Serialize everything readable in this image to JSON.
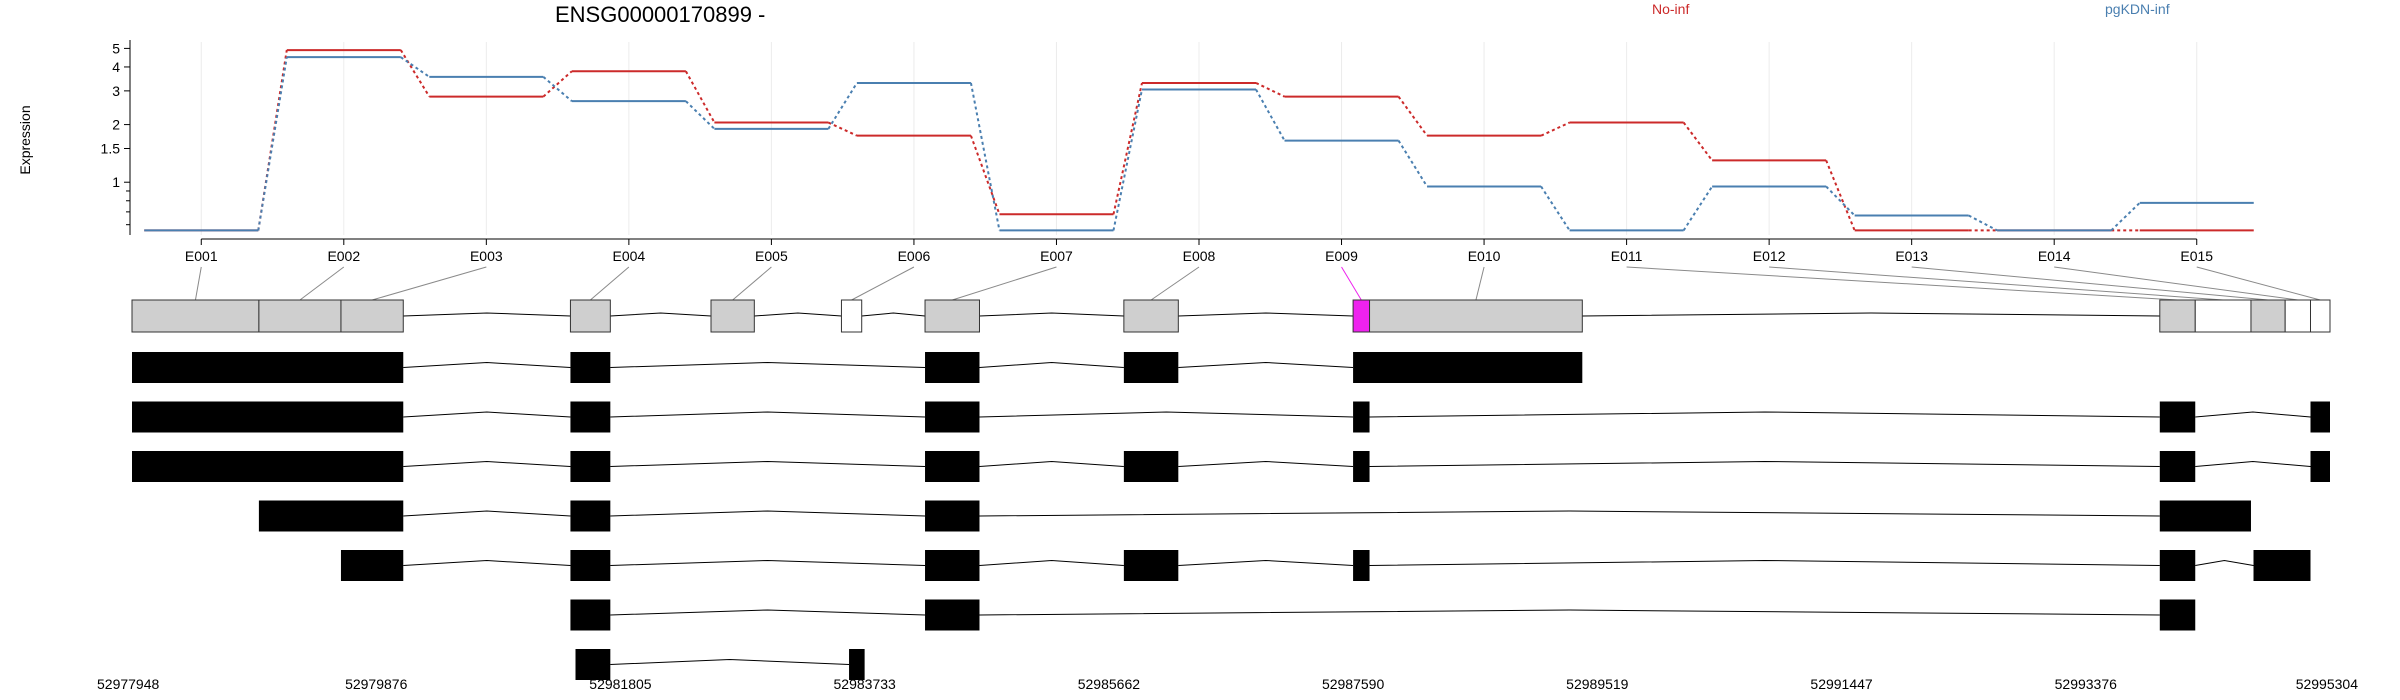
{
  "chart_data": {
    "type": "line",
    "title": "ENSG00000170899 -",
    "ylabel": "Expression",
    "xlabel": "",
    "yscale": "log",
    "ylim": [
      0.53,
      5.4
    ],
    "y_ticks": [
      1,
      1.5,
      2,
      3,
      4,
      5
    ],
    "y_tick_labels": [
      "1",
      "1.5",
      "2",
      "3",
      "4",
      "5"
    ],
    "grid": true,
    "legend_placement": "top",
    "categories": [
      "E001",
      "E002",
      "E003",
      "E004",
      "E005",
      "E006",
      "E007",
      "E008",
      "E009",
      "E010",
      "E011",
      "E012",
      "E013",
      "E014",
      "E015"
    ],
    "series": [
      {
        "name": "No-inf",
        "color": "#cc2a2a",
        "values": [
          0.56,
          4.9,
          2.8,
          3.8,
          2.05,
          1.75,
          0.68,
          3.3,
          2.8,
          1.75,
          2.05,
          1.3,
          0.56,
          0.56,
          0.56
        ]
      },
      {
        "name": "pgKDN-inf",
        "color": "#4a7fb0",
        "values": [
          0.56,
          4.5,
          3.55,
          2.65,
          1.9,
          3.3,
          0.56,
          3.05,
          1.65,
          0.95,
          0.56,
          0.95,
          0.67,
          0.56,
          0.78
        ]
      }
    ],
    "gene_model": {
      "coordinate_range": [
        52977948,
        52995304
      ],
      "coordinate_labels": [
        "52977948",
        "52979876",
        "52981805",
        "52983733",
        "52985662",
        "52987590",
        "52989519",
        "52991447",
        "52993376",
        "52995304"
      ],
      "highlighted_exon": "E009",
      "highlight_color": "#ee22ee",
      "exon_bins": [
        {
          "id": "E001",
          "start": 52977948,
          "end": 52978950
        },
        {
          "id": "E002",
          "start": 52978950,
          "end": 52979598
        },
        {
          "id": "E003",
          "start": 52979598,
          "end": 52980090
        },
        {
          "id": "E004",
          "start": 52981410,
          "end": 52981725
        },
        {
          "id": "E005",
          "start": 52982520,
          "end": 52982862
        },
        {
          "id": "E006",
          "start": 52983550,
          "end": 52983710
        },
        {
          "id": "E007",
          "start": 52984210,
          "end": 52984640
        },
        {
          "id": "E008",
          "start": 52985780,
          "end": 52986210
        },
        {
          "id": "E009",
          "start": 52987590,
          "end": 52987720
        },
        {
          "id": "E010",
          "start": 52987720,
          "end": 52989400
        },
        {
          "id": "E011",
          "start": 52993960,
          "end": 52994240
        },
        {
          "id": "E012",
          "start": 52994240,
          "end": 52994680
        },
        {
          "id": "E013",
          "start": 52994680,
          "end": 52994950
        },
        {
          "id": "E014",
          "start": 52994950,
          "end": 52995150
        },
        {
          "id": "E015",
          "start": 52995150,
          "end": 52995304
        }
      ],
      "transcripts": [
        {
          "exons": [
            [
              52977948,
              52980090
            ],
            [
              52981410,
              52981725
            ],
            [
              52984210,
              52984640
            ],
            [
              52985780,
              52986210
            ],
            [
              52987590,
              52989400
            ]
          ]
        },
        {
          "exons": [
            [
              52977948,
              52980090
            ],
            [
              52981410,
              52981725
            ],
            [
              52984210,
              52984640
            ],
            [
              52987590,
              52987720
            ],
            [
              52993960,
              52994240
            ],
            [
              52995150,
              52995304
            ]
          ]
        },
        {
          "exons": [
            [
              52977948,
              52980090
            ],
            [
              52981410,
              52981725
            ],
            [
              52984210,
              52984640
            ],
            [
              52985780,
              52986210
            ],
            [
              52987590,
              52987720
            ],
            [
              52993960,
              52994240
            ],
            [
              52995150,
              52995304
            ]
          ]
        },
        {
          "exons": [
            [
              52978950,
              52980090
            ],
            [
              52981410,
              52981725
            ],
            [
              52984210,
              52984640
            ],
            [
              52993960,
              52994680
            ]
          ]
        },
        {
          "exons": [
            [
              52979598,
              52980090
            ],
            [
              52981410,
              52981725
            ],
            [
              52984210,
              52984640
            ],
            [
              52985780,
              52986210
            ],
            [
              52987590,
              52987720
            ],
            [
              52993960,
              52994240
            ],
            [
              52994700,
              52995150
            ]
          ]
        },
        {
          "exons": [
            [
              52981410,
              52981725
            ],
            [
              52984210,
              52984640
            ],
            [
              52993960,
              52994240
            ]
          ]
        },
        {
          "exons": [
            [
              52981450,
              52981725
            ],
            [
              52983610,
              52983733
            ]
          ]
        }
      ]
    }
  }
}
